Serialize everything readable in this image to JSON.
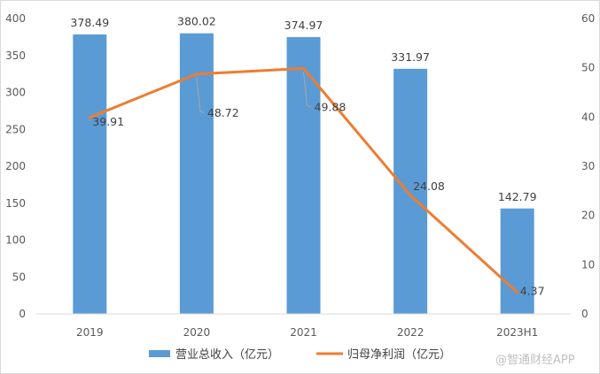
{
  "chart_data": {
    "type": "bar",
    "categories": [
      "2019",
      "2020",
      "2021",
      "2022",
      "2023H1"
    ],
    "series": [
      {
        "name": "营业总收入（亿元）",
        "type": "bar",
        "axis": "left",
        "color": "#5B9BD5",
        "values": [
          378.49,
          380.02,
          374.97,
          331.97,
          142.79
        ],
        "labels": [
          "378.49",
          "380.02",
          "374.97",
          "331.97",
          "142.79"
        ]
      },
      {
        "name": "归母净利润（亿元）",
        "type": "line",
        "axis": "right",
        "color": "#ED7D31",
        "values": [
          39.91,
          48.72,
          49.88,
          24.08,
          4.37
        ],
        "labels": [
          "39.91",
          "48.72",
          "49.88",
          "24.08",
          "4.37"
        ]
      }
    ],
    "y_left": {
      "min": 0,
      "max": 400,
      "step": 50,
      "ticks": [
        "0",
        "50",
        "100",
        "150",
        "200",
        "250",
        "300",
        "350",
        "400"
      ]
    },
    "y_right": {
      "min": 0,
      "max": 60,
      "step": 10,
      "ticks": [
        "0",
        "10",
        "20",
        "30",
        "40",
        "50",
        "60"
      ]
    },
    "grid": false,
    "legend_position": "bottom"
  },
  "watermark": "@智通财经APP"
}
